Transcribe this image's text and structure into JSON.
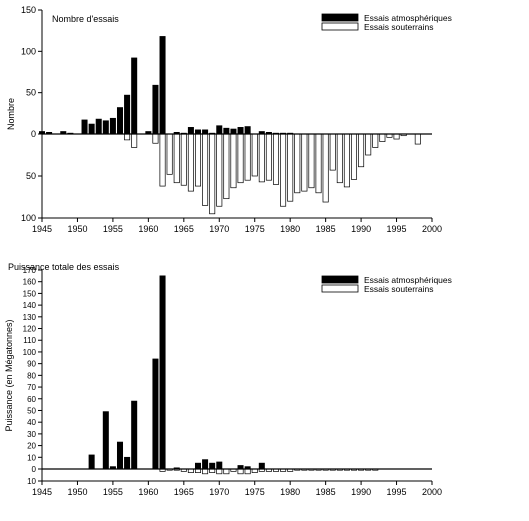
{
  "chart_data": [
    {
      "type": "bar",
      "title": "Nombre d'essais",
      "ylabel": "Nombre",
      "xlabel": "",
      "xlim": [
        1945,
        2000
      ],
      "x_ticks": [
        "1945",
        "1950",
        "1955",
        "1960",
        "1965",
        "1970",
        "1975",
        "1980",
        "1985",
        "1990",
        "1995",
        "2000"
      ],
      "ylim": [
        -100,
        150
      ],
      "y_ticks": [
        {
          "value": 150,
          "label": "150"
        },
        {
          "value": 100,
          "label": "100"
        },
        {
          "value": 50,
          "label": "50"
        },
        {
          "value": 0,
          "label": "0"
        },
        {
          "value": -50,
          "label": "50"
        },
        {
          "value": -100,
          "label": "100"
        }
      ],
      "legend_position": "top-right",
      "series": [
        {
          "name": "Essais atmosphériques",
          "color": "#000000",
          "direction": "up",
          "x": [
            1945,
            1946,
            1948,
            1949,
            1951,
            1952,
            1953,
            1954,
            1955,
            1956,
            1957,
            1958,
            1960,
            1961,
            1962,
            1964,
            1965,
            1966,
            1967,
            1968,
            1969,
            1970,
            1971,
            1972,
            1973,
            1974,
            1976,
            1977,
            1978,
            1979,
            1980
          ],
          "values": [
            3,
            2,
            3,
            1,
            17,
            12,
            18,
            16,
            19,
            32,
            47,
            92,
            3,
            59,
            118,
            2,
            1,
            8,
            5,
            5,
            1,
            10,
            7,
            6,
            8,
            9,
            3,
            2,
            1,
            1,
            1
          ]
        },
        {
          "name": "Essais souterrains",
          "color": "#ffffff",
          "direction": "down",
          "x": [
            1957,
            1958,
            1961,
            1962,
            1963,
            1964,
            1965,
            1966,
            1967,
            1968,
            1969,
            1970,
            1971,
            1972,
            1973,
            1974,
            1975,
            1976,
            1977,
            1978,
            1979,
            1980,
            1981,
            1982,
            1983,
            1984,
            1985,
            1986,
            1987,
            1988,
            1989,
            1990,
            1991,
            1992,
            1993,
            1994,
            1995,
            1996,
            1998
          ],
          "values": [
            7,
            16,
            11,
            62,
            48,
            58,
            61,
            68,
            62,
            85,
            95,
            86,
            77,
            64,
            58,
            55,
            50,
            57,
            55,
            60,
            86,
            80,
            70,
            68,
            64,
            70,
            81,
            43,
            58,
            63,
            54,
            39,
            25,
            16,
            9,
            4,
            6,
            2,
            12
          ]
        }
      ]
    },
    {
      "type": "bar",
      "title": "Puissance totale des essais",
      "ylabel": "Puissance (en Mégatonnes)",
      "xlabel": "",
      "xlim": [
        1945,
        2000
      ],
      "x_ticks": [
        "1945",
        "1950",
        "1955",
        "1960",
        "1965",
        "1970",
        "1975",
        "1980",
        "1985",
        "1990",
        "1995",
        "2000"
      ],
      "ylim": [
        -10,
        170
      ],
      "y_ticks": [
        {
          "value": 170,
          "label": "170"
        },
        {
          "value": 160,
          "label": "160"
        },
        {
          "value": 150,
          "label": "150"
        },
        {
          "value": 140,
          "label": "140"
        },
        {
          "value": 130,
          "label": "130"
        },
        {
          "value": 120,
          "label": "120"
        },
        {
          "value": 110,
          "label": "110"
        },
        {
          "value": 100,
          "label": "100"
        },
        {
          "value": 90,
          "label": "90"
        },
        {
          "value": 80,
          "label": "80"
        },
        {
          "value": 70,
          "label": "70"
        },
        {
          "value": 60,
          "label": "60"
        },
        {
          "value": 50,
          "label": "50"
        },
        {
          "value": 40,
          "label": "40"
        },
        {
          "value": 30,
          "label": "30"
        },
        {
          "value": 20,
          "label": "20"
        },
        {
          "value": 10,
          "label": "10"
        },
        {
          "value": 0,
          "label": "0"
        },
        {
          "value": -10,
          "label": "10"
        }
      ],
      "legend_position": "top-right",
      "series": [
        {
          "name": "Essais atmosphériques",
          "color": "#000000",
          "direction": "up",
          "x": [
            1952,
            1954,
            1955,
            1956,
            1957,
            1958,
            1961,
            1962,
            1964,
            1967,
            1968,
            1969,
            1970,
            1973,
            1974,
            1976
          ],
          "values": [
            12,
            49,
            2,
            23,
            10,
            58,
            94,
            165,
            1,
            5,
            8,
            5,
            6,
            3,
            2,
            5
          ]
        },
        {
          "name": "Essais souterrains",
          "color": "#ffffff",
          "direction": "down",
          "x": [
            1962,
            1963,
            1964,
            1965,
            1966,
            1967,
            1968,
            1969,
            1970,
            1971,
            1972,
            1973,
            1974,
            1975,
            1976,
            1977,
            1978,
            1979,
            1980,
            1981,
            1982,
            1983,
            1984,
            1985,
            1986,
            1987,
            1988,
            1989,
            1990,
            1991,
            1992
          ],
          "values": [
            2,
            1,
            1,
            2,
            3,
            3,
            4,
            3,
            4,
            4,
            2,
            4,
            4,
            3,
            2,
            2,
            2,
            2,
            2,
            1,
            1,
            1,
            1,
            1,
            1,
            1,
            1,
            1,
            1,
            1,
            1
          ]
        }
      ]
    }
  ]
}
